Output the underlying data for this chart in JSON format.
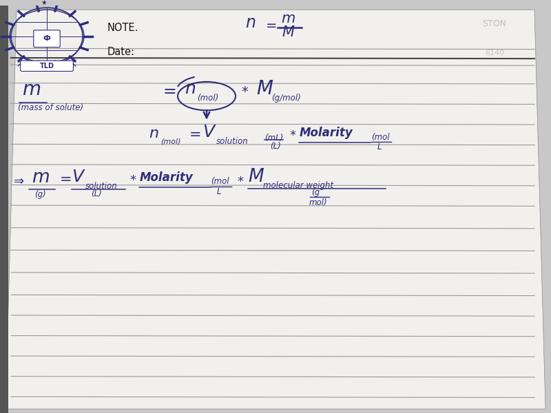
{
  "bg_color": "#c8c8c8",
  "page_color_top": "#f5f5f2",
  "page_color_body": "#eeecea",
  "ink_color": "#2d2d7a",
  "line_color": "#9a9a9a",
  "logo_color": "#2d2d7a",
  "note_text": "NOTE.",
  "date_text": "Date:",
  "right_text1": "STON",
  "right_text2": "6140",
  "shadow_color": "#aaaaaa"
}
